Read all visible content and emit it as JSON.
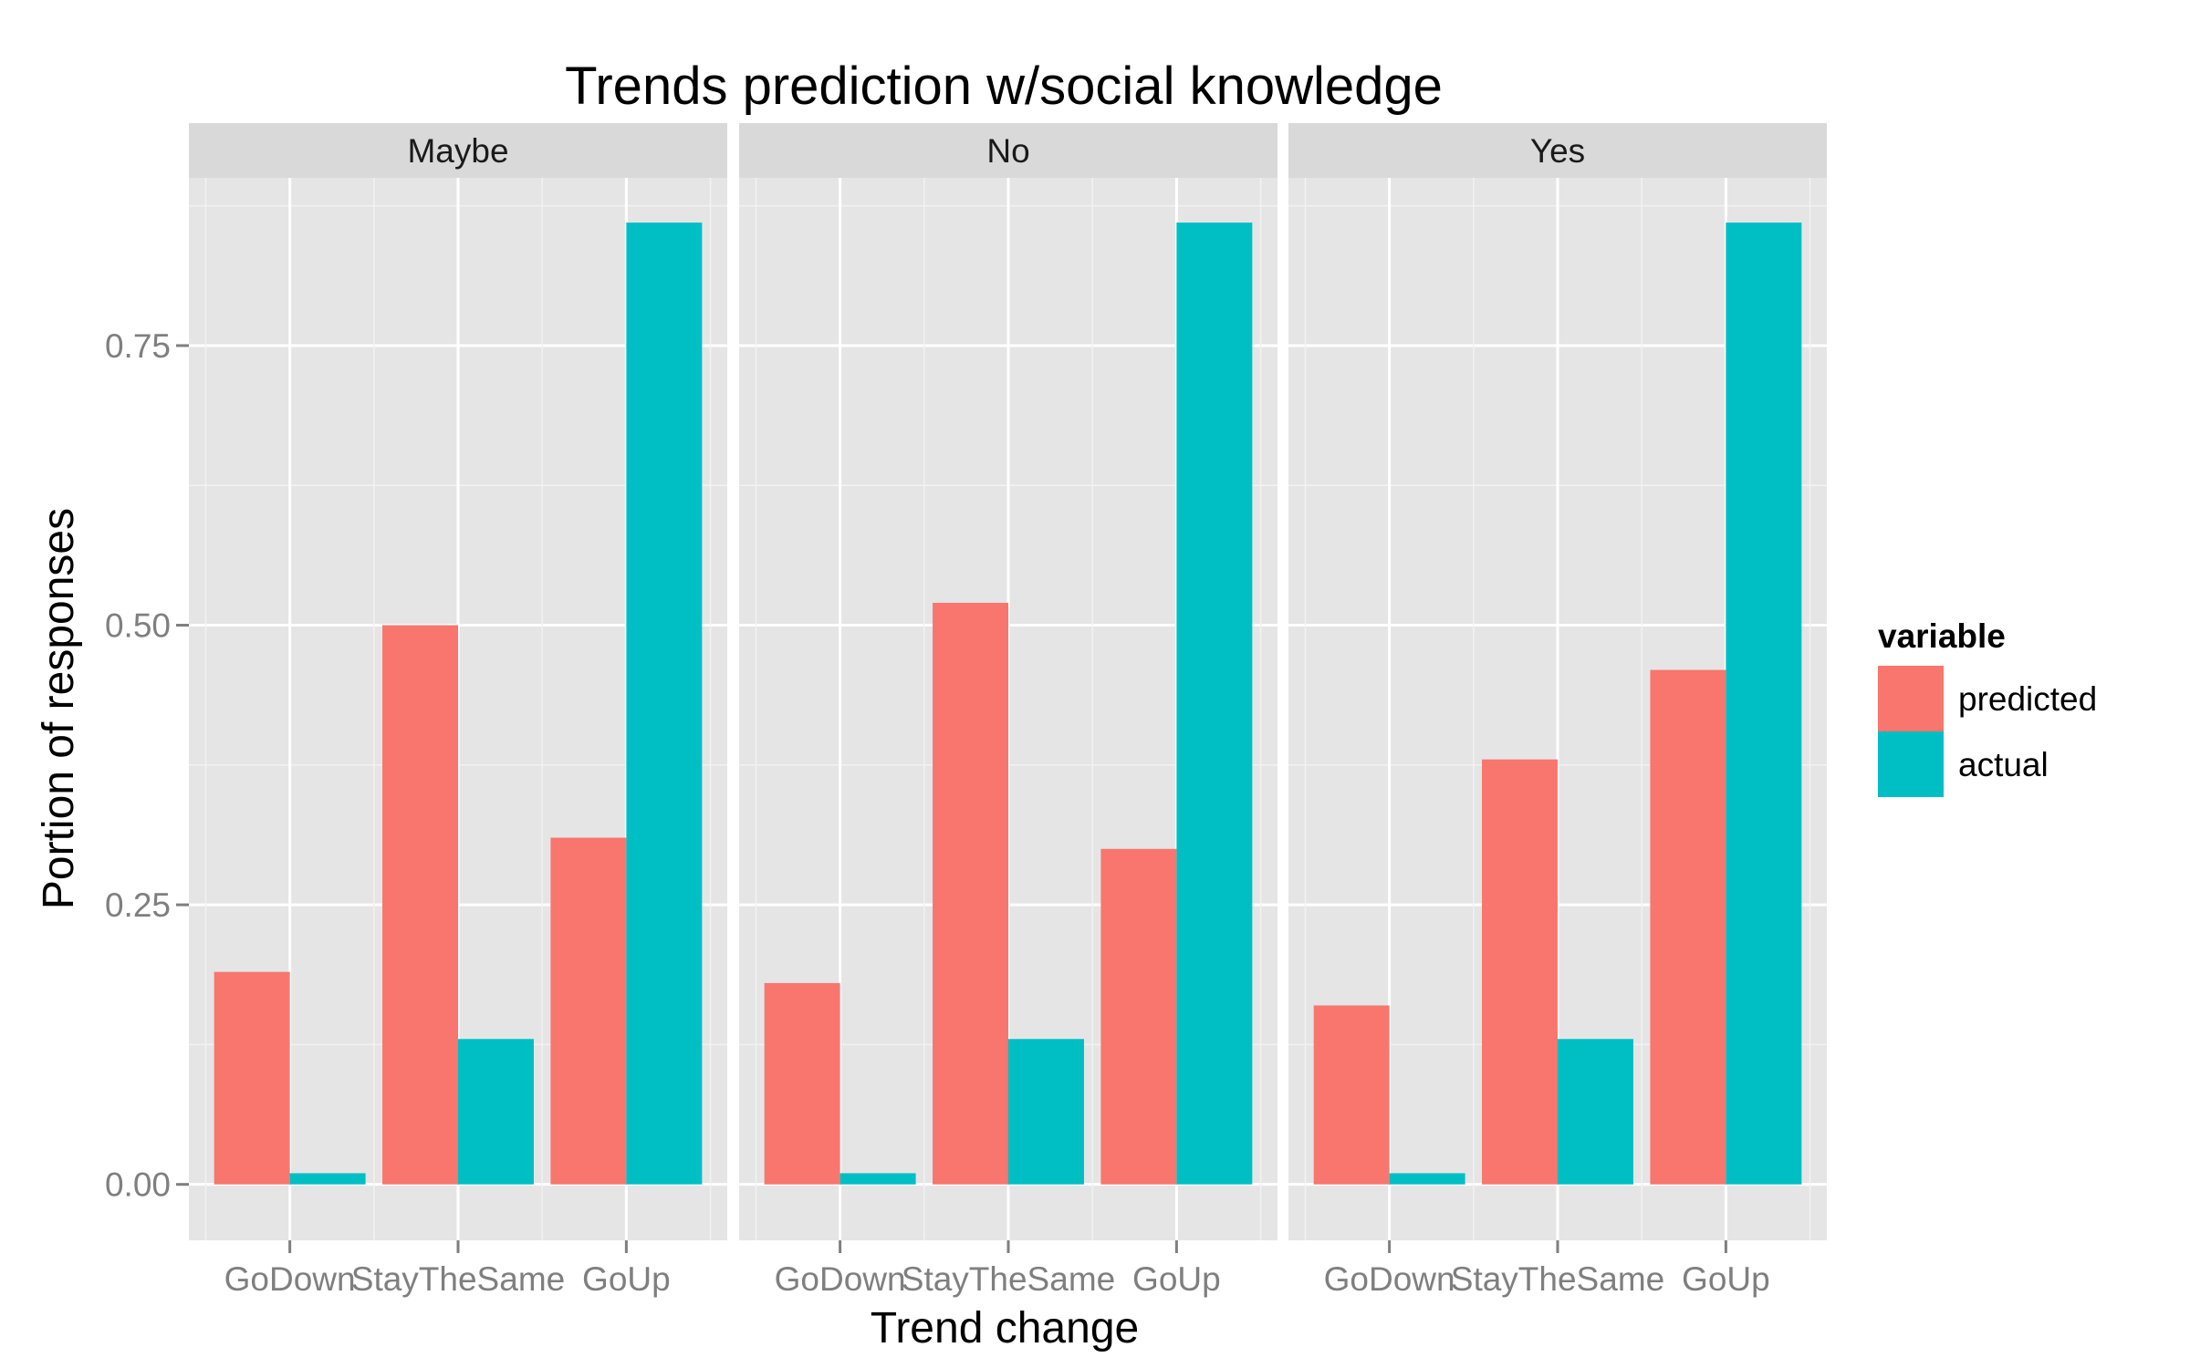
{
  "chart_data": {
    "type": "bar",
    "title": "Trends prediction w/social knowledge",
    "xlabel": "Trend change",
    "ylabel": "Portion of responses",
    "ylim": [
      -0.05,
      0.9
    ],
    "y_ticks": [
      0.0,
      0.25,
      0.5,
      0.75
    ],
    "y_tick_labels": [
      "0.00",
      "0.25",
      "0.50",
      "0.75"
    ],
    "grid": true,
    "legend_position": "right",
    "legend_title": "variable",
    "categories": [
      "GoDown",
      "StayTheSame",
      "GoUp"
    ],
    "series_meta": [
      {
        "name": "predicted",
        "color": "#F8766D"
      },
      {
        "name": "actual",
        "color": "#00BFC4"
      }
    ],
    "panels": [
      {
        "facet": "Maybe",
        "series": [
          {
            "name": "predicted",
            "values": [
              0.19,
              0.5,
              0.31
            ]
          },
          {
            "name": "actual",
            "values": [
              0.01,
              0.13,
              0.86
            ]
          }
        ]
      },
      {
        "facet": "No",
        "series": [
          {
            "name": "predicted",
            "values": [
              0.18,
              0.52,
              0.3
            ]
          },
          {
            "name": "actual",
            "values": [
              0.01,
              0.13,
              0.86
            ]
          }
        ]
      },
      {
        "facet": "Yes",
        "series": [
          {
            "name": "predicted",
            "values": [
              0.16,
              0.38,
              0.46
            ]
          },
          {
            "name": "actual",
            "values": [
              0.01,
              0.13,
              0.86
            ]
          }
        ]
      }
    ]
  }
}
